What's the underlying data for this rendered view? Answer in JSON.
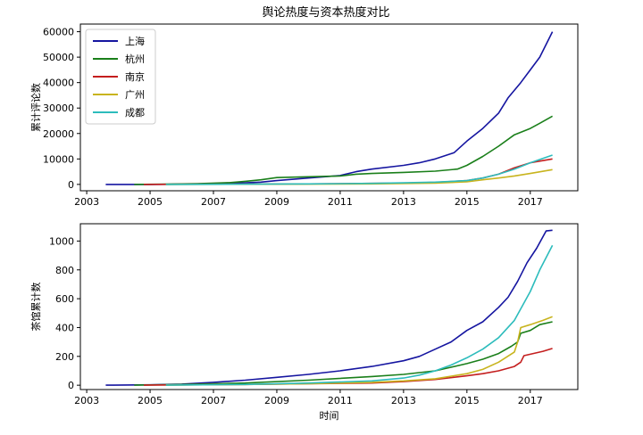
{
  "figure": {
    "title": "舆论热度与资本热度对比"
  },
  "chart_data": [
    {
      "type": "line",
      "title": "舆论热度与资本热度对比",
      "xlabel": "",
      "ylabel": "累计评论数",
      "xlim": [
        2002.8,
        2018.5
      ],
      "ylim": [
        -2500,
        63000
      ],
      "xticks": [
        2003,
        2005,
        2007,
        2009,
        2011,
        2013,
        2015,
        2017
      ],
      "yticks": [
        0,
        10000,
        20000,
        30000,
        40000,
        50000,
        60000
      ],
      "grid": false,
      "legend_position": "top-left",
      "series": [
        {
          "name": "上海",
          "color": "#1515a0",
          "x": [
            2003.6,
            2005.0,
            2006.0,
            2007.0,
            2008.0,
            2008.5,
            2009.0,
            2010.0,
            2011.0,
            2011.5,
            2012.0,
            2013.0,
            2013.5,
            2014.0,
            2014.6,
            2015.0,
            2015.5,
            2016.0,
            2016.3,
            2016.7,
            2017.0,
            2017.3,
            2017.7
          ],
          "y": [
            0,
            0,
            100,
            300,
            600,
            900,
            1500,
            2500,
            3500,
            5000,
            6000,
            7500,
            8500,
            10000,
            12500,
            17000,
            22000,
            28000,
            34000,
            40000,
            45000,
            50000,
            60000
          ]
        },
        {
          "name": "杭州",
          "color": "#1a7f1a",
          "x": [
            2004.5,
            2005.5,
            2006.5,
            2007.5,
            2008.0,
            2008.5,
            2009.0,
            2010.0,
            2011.0,
            2011.5,
            2012.0,
            2013.0,
            2014.0,
            2014.7,
            2015.0,
            2015.5,
            2016.0,
            2016.5,
            2017.0,
            2017.3,
            2017.7
          ],
          "y": [
            0,
            100,
            300,
            700,
            1200,
            1800,
            2700,
            3000,
            3300,
            4000,
            4300,
            4700,
            5200,
            6000,
            7500,
            11000,
            15000,
            19500,
            22000,
            24000,
            26800
          ]
        },
        {
          "name": "南京",
          "color": "#c41e1e",
          "x": [
            2004.8,
            2006.0,
            2008.0,
            2010.0,
            2012.0,
            2013.0,
            2014.0,
            2015.0,
            2015.5,
            2016.0,
            2016.5,
            2017.0,
            2017.7
          ],
          "y": [
            0,
            50,
            100,
            200,
            400,
            500,
            800,
            1500,
            2500,
            4000,
            6500,
            8500,
            10000
          ]
        },
        {
          "name": "广州",
          "color": "#c8b41e",
          "x": [
            2005.5,
            2008.0,
            2010.0,
            2012.0,
            2014.0,
            2015.0,
            2015.5,
            2016.0,
            2016.5,
            2017.0,
            2017.7
          ],
          "y": [
            0,
            50,
            100,
            200,
            500,
            1000,
            1800,
            2500,
            3300,
            4300,
            5800
          ]
        },
        {
          "name": "成都",
          "color": "#2cbcbc",
          "x": [
            2005.5,
            2008.0,
            2010.0,
            2012.0,
            2013.0,
            2014.0,
            2015.0,
            2015.5,
            2016.0,
            2016.5,
            2017.0,
            2017.7
          ],
          "y": [
            0,
            100,
            200,
            400,
            600,
            900,
            1500,
            2500,
            4000,
            6000,
            8500,
            11500
          ]
        }
      ]
    },
    {
      "type": "line",
      "title": "",
      "xlabel": "时间",
      "ylabel": "茶馆累计数",
      "xlim": [
        2002.8,
        2018.5
      ],
      "ylim": [
        -30,
        1120
      ],
      "xticks": [
        2003,
        2005,
        2007,
        2009,
        2011,
        2013,
        2015,
        2017
      ],
      "yticks": [
        0,
        200,
        400,
        600,
        800,
        1000
      ],
      "grid": false,
      "series": [
        {
          "name": "上海",
          "color": "#1515a0",
          "x": [
            2003.6,
            2005.0,
            2006.0,
            2007.0,
            2008.0,
            2009.0,
            2010.0,
            2011.0,
            2012.0,
            2013.0,
            2013.5,
            2014.0,
            2014.5,
            2015.0,
            2015.5,
            2016.0,
            2016.3,
            2016.6,
            2016.9,
            2017.2,
            2017.5,
            2017.7
          ],
          "y": [
            0,
            3,
            8,
            20,
            35,
            55,
            75,
            100,
            130,
            170,
            200,
            250,
            300,
            380,
            440,
            540,
            610,
            720,
            850,
            950,
            1070,
            1075
          ]
        },
        {
          "name": "杭州",
          "color": "#1a7f1a",
          "x": [
            2004.5,
            2006.0,
            2008.0,
            2010.0,
            2012.0,
            2013.0,
            2014.0,
            2015.0,
            2015.5,
            2016.0,
            2016.4,
            2016.6,
            2016.7,
            2017.0,
            2017.3,
            2017.7
          ],
          "y": [
            0,
            5,
            15,
            35,
            60,
            75,
            100,
            150,
            180,
            220,
            270,
            300,
            360,
            380,
            420,
            440
          ]
        },
        {
          "name": "南京",
          "color": "#c41e1e",
          "x": [
            2004.8,
            2008.0,
            2010.0,
            2012.0,
            2013.0,
            2014.0,
            2015.0,
            2015.5,
            2016.0,
            2016.5,
            2016.7,
            2016.8,
            2017.0,
            2017.4,
            2017.7
          ],
          "y": [
            0,
            5,
            10,
            15,
            25,
            40,
            65,
            80,
            100,
            130,
            160,
            205,
            215,
            235,
            255
          ]
        },
        {
          "name": "广州",
          "color": "#c8b41e",
          "x": [
            2005.5,
            2008.0,
            2010.0,
            2012.0,
            2013.0,
            2014.0,
            2015.0,
            2015.5,
            2016.0,
            2016.5,
            2016.6,
            2016.7,
            2017.0,
            2017.4,
            2017.7
          ],
          "y": [
            0,
            5,
            10,
            20,
            30,
            45,
            80,
            110,
            160,
            230,
            300,
            400,
            420,
            450,
            475
          ]
        },
        {
          "name": "成都",
          "color": "#2cbcbc",
          "x": [
            2005.5,
            2008.0,
            2010.0,
            2012.0,
            2013.0,
            2013.5,
            2014.0,
            2014.5,
            2015.0,
            2015.5,
            2016.0,
            2016.5,
            2017.0,
            2017.3,
            2017.7
          ],
          "y": [
            0,
            5,
            15,
            30,
            50,
            70,
            100,
            140,
            190,
            250,
            330,
            450,
            650,
            800,
            970
          ]
        }
      ]
    }
  ]
}
